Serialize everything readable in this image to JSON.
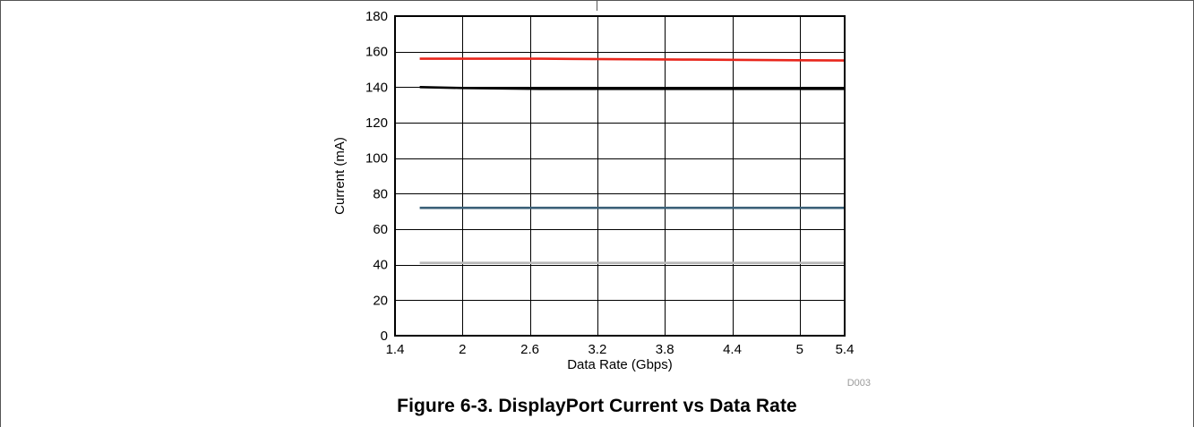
{
  "caption": "Figure 6-3. DisplayPort Current vs Data Rate",
  "chart_id": "D003",
  "colors": {
    "grid": "#000000",
    "frame": "#555555"
  },
  "chart_data": {
    "type": "line",
    "xlabel": "Data Rate (Gbps)",
    "ylabel": "Current (mA)",
    "xlim": [
      1.4,
      5.4
    ],
    "ylim": [
      0,
      180
    ],
    "xticks": [
      1.4,
      2,
      2.6,
      3.2,
      3.8,
      4.4,
      5,
      5.4
    ],
    "xtick_labels": [
      "1.4",
      "2",
      "2.6",
      "3.2",
      "3.8",
      "4.4",
      "5",
      "5.4"
    ],
    "yticks": [
      0,
      20,
      40,
      60,
      80,
      100,
      120,
      140,
      160,
      180
    ],
    "ytick_labels": [
      "0",
      "20",
      "40",
      "60",
      "80",
      "100",
      "120",
      "140",
      "160",
      "180"
    ],
    "grid": true,
    "legend": "none",
    "series": [
      {
        "color": "#e8261c",
        "x": [
          1.62,
          2.7,
          4.05,
          5.4
        ],
        "y": [
          156,
          156,
          155.5,
          155
        ]
      },
      {
        "color": "#000000",
        "x": [
          1.62,
          2.0,
          2.7,
          4.05,
          5.4
        ],
        "y": [
          140,
          139.5,
          139,
          139,
          139
        ]
      },
      {
        "color": "#3a5f77",
        "x": [
          1.62,
          2.7,
          4.05,
          5.4
        ],
        "y": [
          72,
          72,
          72,
          72
        ]
      },
      {
        "color": "#b8b8b8",
        "x": [
          1.62,
          2.7,
          4.05,
          5.4
        ],
        "y": [
          41,
          41,
          41,
          41
        ]
      }
    ]
  }
}
